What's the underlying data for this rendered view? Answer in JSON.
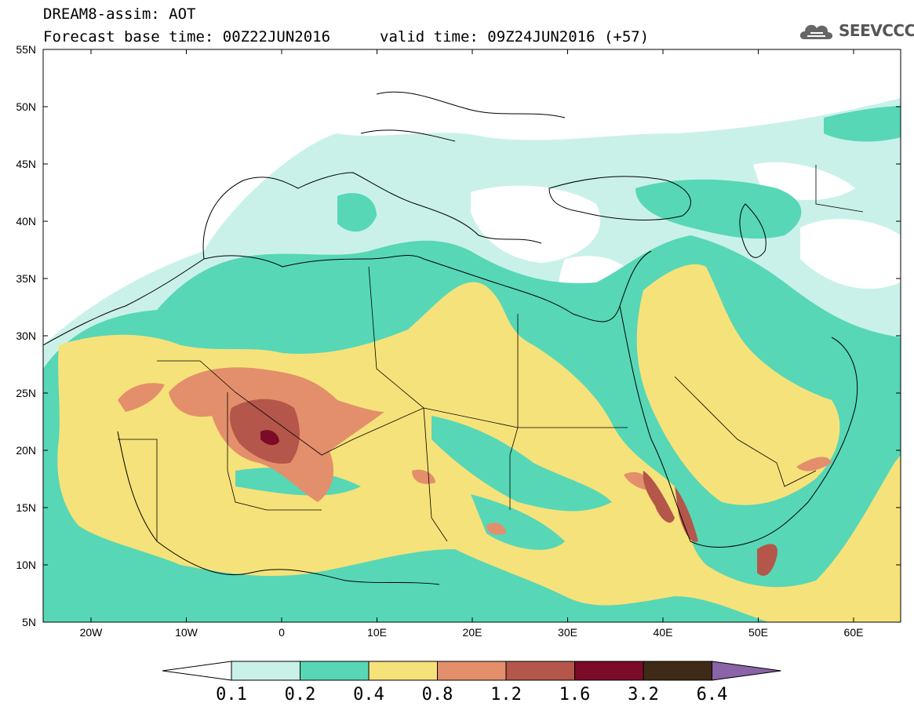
{
  "header": {
    "line1": "DREAM8-assim: AOT",
    "line2": "Forecast base time: 00Z22JUN2016",
    "line3": "valid time: 09Z24JUN2016 (+57)"
  },
  "logo": {
    "text": "SEEVCCC",
    "icon": "cloud-icon"
  },
  "axes": {
    "lat_labels": [
      "55N",
      "50N",
      "45N",
      "40N",
      "35N",
      "30N",
      "25N",
      "20N",
      "15N",
      "10N",
      "5N"
    ],
    "lon_labels": [
      "20W",
      "10W",
      "0",
      "10E",
      "20E",
      "30E",
      "40E",
      "50E",
      "60E"
    ]
  },
  "colorbar": {
    "levels": [
      "0.1",
      "0.2",
      "0.4",
      "0.8",
      "1.2",
      "1.6",
      "3.2",
      "6.4"
    ],
    "colors": [
      "#ffffff",
      "#c9f1ea",
      "#57d7b6",
      "#f6e27a",
      "#e38f6b",
      "#b4564a",
      "#7b0b29",
      "#3f2a17",
      "#8a63a8"
    ]
  }
}
